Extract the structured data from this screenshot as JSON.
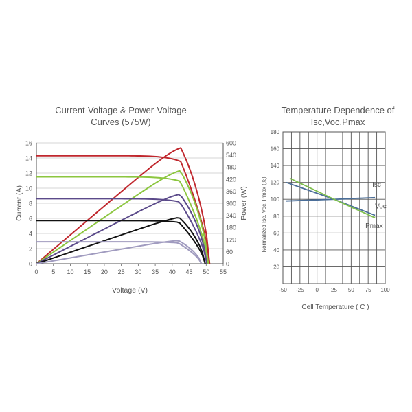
{
  "chart_data": [
    {
      "type": "line",
      "title_line1": "Current-Voltage & Power-Voltage",
      "title_line2": "Curves (575W)",
      "xlabel": "Voltage (V)",
      "ylabel_left": "Current (A)",
      "ylabel_right": "Power (W)",
      "xlim": [
        0,
        55
      ],
      "ylim_left": [
        0,
        16
      ],
      "ylim_right": [
        0,
        600
      ],
      "x_ticks": [
        "0",
        "5",
        "10",
        "15",
        "20",
        "25",
        "30",
        "35",
        "40",
        "45",
        "50",
        "55"
      ],
      "y_left_ticks": [
        "0",
        "2",
        "4",
        "6",
        "8",
        "10",
        "12",
        "14",
        "16"
      ],
      "y_right_ticks": [
        "0",
        "60",
        "120",
        "180",
        "240",
        "300",
        "360",
        "420",
        "480",
        "540",
        "600"
      ],
      "grid": "horizontal",
      "series": [
        {
          "color": "#c0272d",
          "isc": 14.3,
          "voc": 51.0,
          "vmp": 42.5,
          "pmax": 575
        },
        {
          "color": "#8cc63f",
          "isc": 11.5,
          "voc": 50.6,
          "vmp": 42.3,
          "pmax": 462
        },
        {
          "color": "#5b4a8a",
          "isc": 8.6,
          "voc": 50.2,
          "vmp": 42.2,
          "pmax": 345
        },
        {
          "color": "#111111",
          "isc": 5.7,
          "voc": 49.7,
          "vmp": 42.0,
          "pmax": 230
        },
        {
          "color": "#a09bbf",
          "isc": 2.9,
          "voc": 48.6,
          "vmp": 41.8,
          "pmax": 115
        }
      ]
    },
    {
      "type": "line",
      "title_line1": "Temperature Dependence of",
      "title_line2": "Isc,Voc,Pmax",
      "xlabel": "Cell Temperature ( C )",
      "ylabel": "Normalized Isc, Voc, Pmax (%)",
      "xlim": [
        -50,
        100
      ],
      "ylim": [
        0,
        180
      ],
      "x_ticks": [
        "-50",
        "-25",
        "0",
        "25",
        "50",
        "75",
        "100"
      ],
      "y_ticks": [
        "20",
        "40",
        "60",
        "80",
        "100",
        "120",
        "140",
        "160",
        "180"
      ],
      "grid": "both",
      "series": [
        {
          "name": "Isc",
          "color": "#4a6e99",
          "x": [
            -45,
            25,
            85
          ],
          "y": [
            98,
            100,
            102
          ]
        },
        {
          "name": "Voc",
          "color": "#4a6e99",
          "x": [
            -45,
            25,
            85
          ],
          "y": [
            120,
            100,
            81
          ]
        },
        {
          "name": "Pmax",
          "color": "#7fbf4d",
          "x": [
            -40,
            25,
            85
          ],
          "y": [
            125,
            100,
            78
          ]
        }
      ]
    }
  ]
}
